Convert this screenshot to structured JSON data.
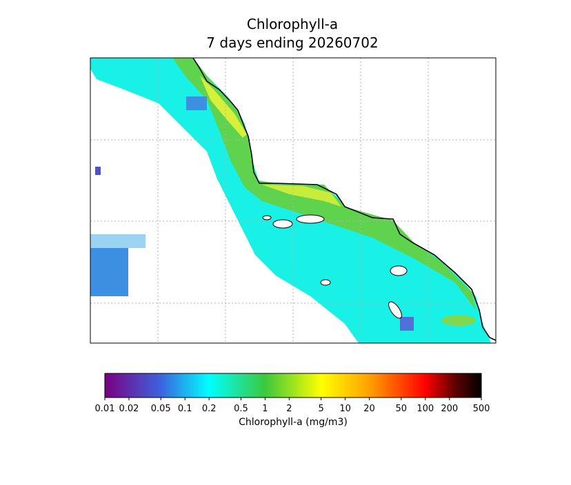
{
  "header": {
    "title": "Chlorophyll-a",
    "subtitle": "7 days ending 20260702"
  },
  "colorbar": {
    "label": "Chlorophyll-a (mg/m3)",
    "scale": "log",
    "lim": [
      0.01,
      500
    ],
    "ticks": [
      0.01,
      0.02,
      0.05,
      0.1,
      0.2,
      0.5,
      1,
      2,
      5,
      10,
      20,
      50,
      100,
      200,
      500
    ]
  }
}
